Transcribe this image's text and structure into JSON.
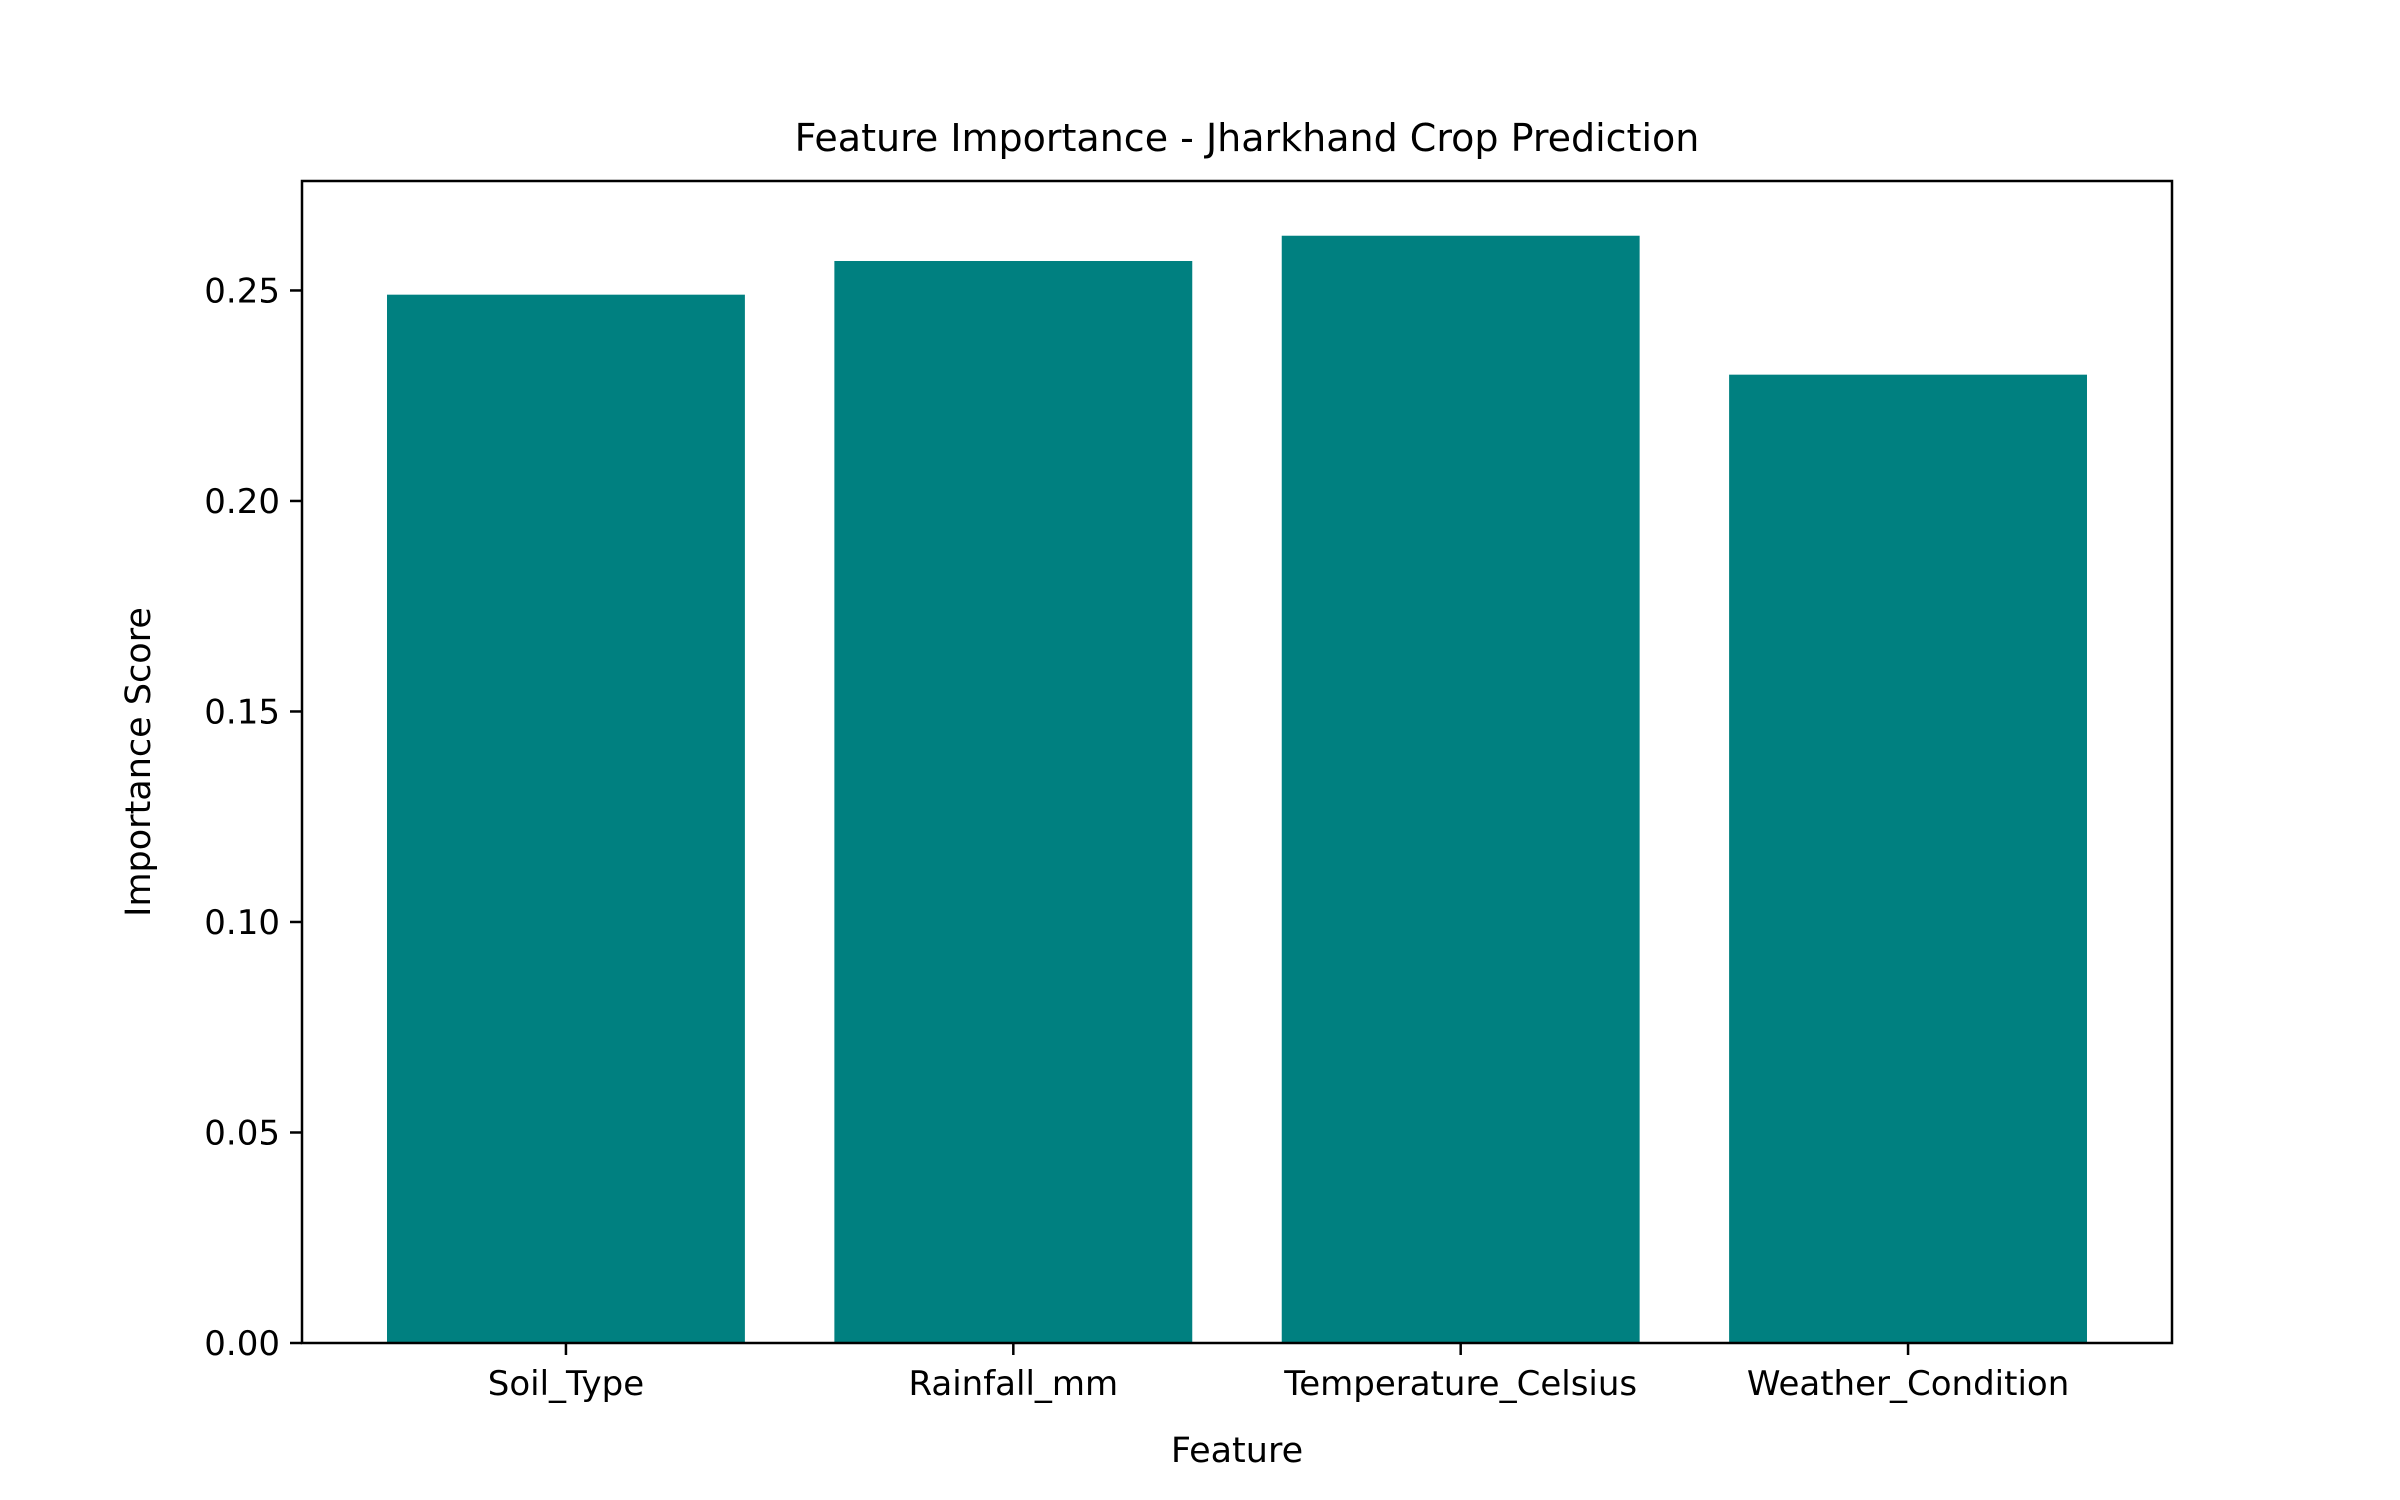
{
  "chart_data": {
    "type": "bar",
    "title": "Feature Importance - Jharkhand Crop Prediction",
    "xlabel": "Feature",
    "ylabel": "Importance Score",
    "categories": [
      "Soil_Type",
      "Rainfall_mm",
      "Temperature_Celsius",
      "Weather_Condition"
    ],
    "values": [
      0.249,
      0.257,
      0.263,
      0.23
    ],
    "ylim": [
      0,
      0.276
    ],
    "yticks": [
      0.0,
      0.05,
      0.1,
      0.15,
      0.2,
      0.25
    ],
    "ytick_labels": [
      "0.00",
      "0.05",
      "0.10",
      "0.15",
      "0.20",
      "0.25"
    ],
    "grid": false,
    "legend": "none",
    "colors": {
      "bar": "#008080",
      "axes": "#000000",
      "background": "#ffffff"
    }
  }
}
